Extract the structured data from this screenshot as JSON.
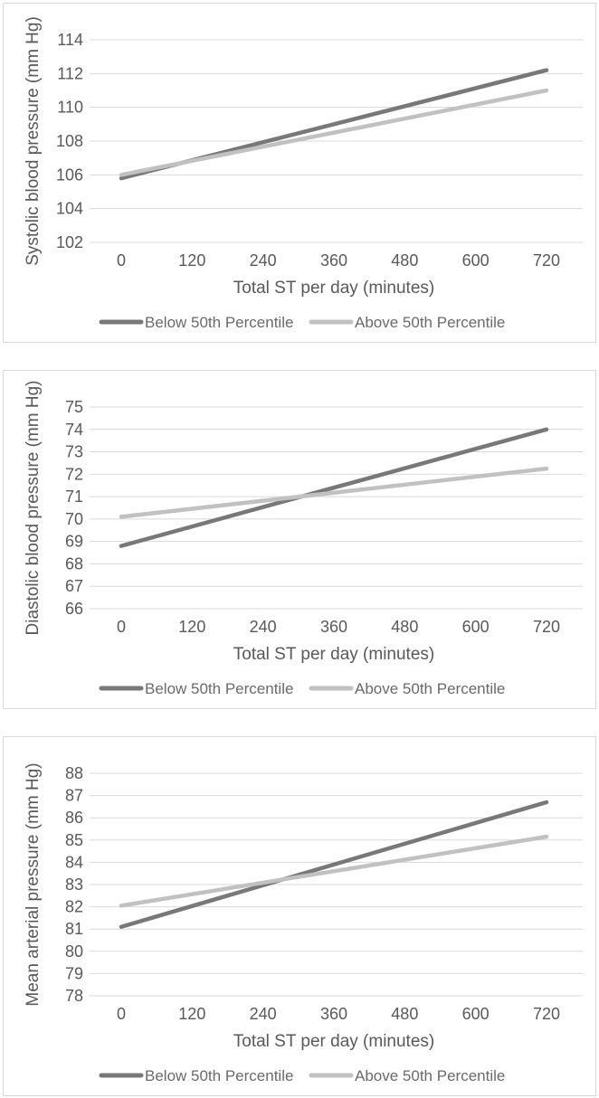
{
  "colors": {
    "below_series": "#787878",
    "above_series": "#c1c1c1",
    "gridline": "#d9d9d9",
    "axis_text": "#595959",
    "legend_text": "#6a6a6a",
    "panel_border": "#d9d9d9",
    "panel_background": "#ffffff"
  },
  "legend": {
    "below_label": "Below 50th Percentile",
    "above_label": "Above 50th Percentile"
  },
  "chart_data": [
    {
      "type": "line",
      "title": "",
      "ylabel": "Systolic blood pressure (mm Hg)",
      "xlabel": "Total ST per day (minutes)",
      "x": [
        0,
        720
      ],
      "xticks": [
        0,
        120,
        240,
        360,
        480,
        600,
        720
      ],
      "yticks": [
        102,
        104,
        106,
        108,
        110,
        112,
        114
      ],
      "ylim": [
        102,
        114
      ],
      "xlim": [
        0,
        720
      ],
      "grid": "horizontal",
      "legend_position": "bottom",
      "series": [
        {
          "name": "Below 50th Percentile",
          "color": "#787878",
          "values": [
            105.8,
            112.2
          ]
        },
        {
          "name": "Above 50th Percentile",
          "color": "#c1c1c1",
          "values": [
            106.0,
            111.0
          ]
        }
      ]
    },
    {
      "type": "line",
      "title": "",
      "ylabel": "Diastolic blood pressure (mm Hg)",
      "xlabel": "Total ST per day (minutes)",
      "x": [
        0,
        720
      ],
      "xticks": [
        0,
        120,
        240,
        360,
        480,
        600,
        720
      ],
      "yticks": [
        66,
        67,
        68,
        69,
        70,
        71,
        72,
        73,
        74,
        75
      ],
      "ylim": [
        66,
        75
      ],
      "xlim": [
        0,
        720
      ],
      "grid": "horizontal",
      "legend_position": "bottom",
      "series": [
        {
          "name": "Below 50th Percentile",
          "color": "#787878",
          "values": [
            68.8,
            74.0
          ]
        },
        {
          "name": "Above 50th Percentile",
          "color": "#c1c1c1",
          "values": [
            70.1,
            72.25
          ]
        }
      ]
    },
    {
      "type": "line",
      "title": "",
      "ylabel": "Mean arterial pressure (mm Hg)",
      "xlabel": "Total ST per day (minutes)",
      "x": [
        0,
        720
      ],
      "xticks": [
        0,
        120,
        240,
        360,
        480,
        600,
        720
      ],
      "yticks": [
        78,
        79,
        80,
        81,
        82,
        83,
        84,
        85,
        86,
        87,
        88
      ],
      "ylim": [
        78,
        88
      ],
      "xlim": [
        0,
        720
      ],
      "grid": "horizontal",
      "legend_position": "bottom",
      "series": [
        {
          "name": "Below 50th Percentile",
          "color": "#787878",
          "values": [
            81.1,
            86.7
          ]
        },
        {
          "name": "Above 50th Percentile",
          "color": "#c1c1c1",
          "values": [
            82.05,
            85.15
          ]
        }
      ]
    }
  ]
}
